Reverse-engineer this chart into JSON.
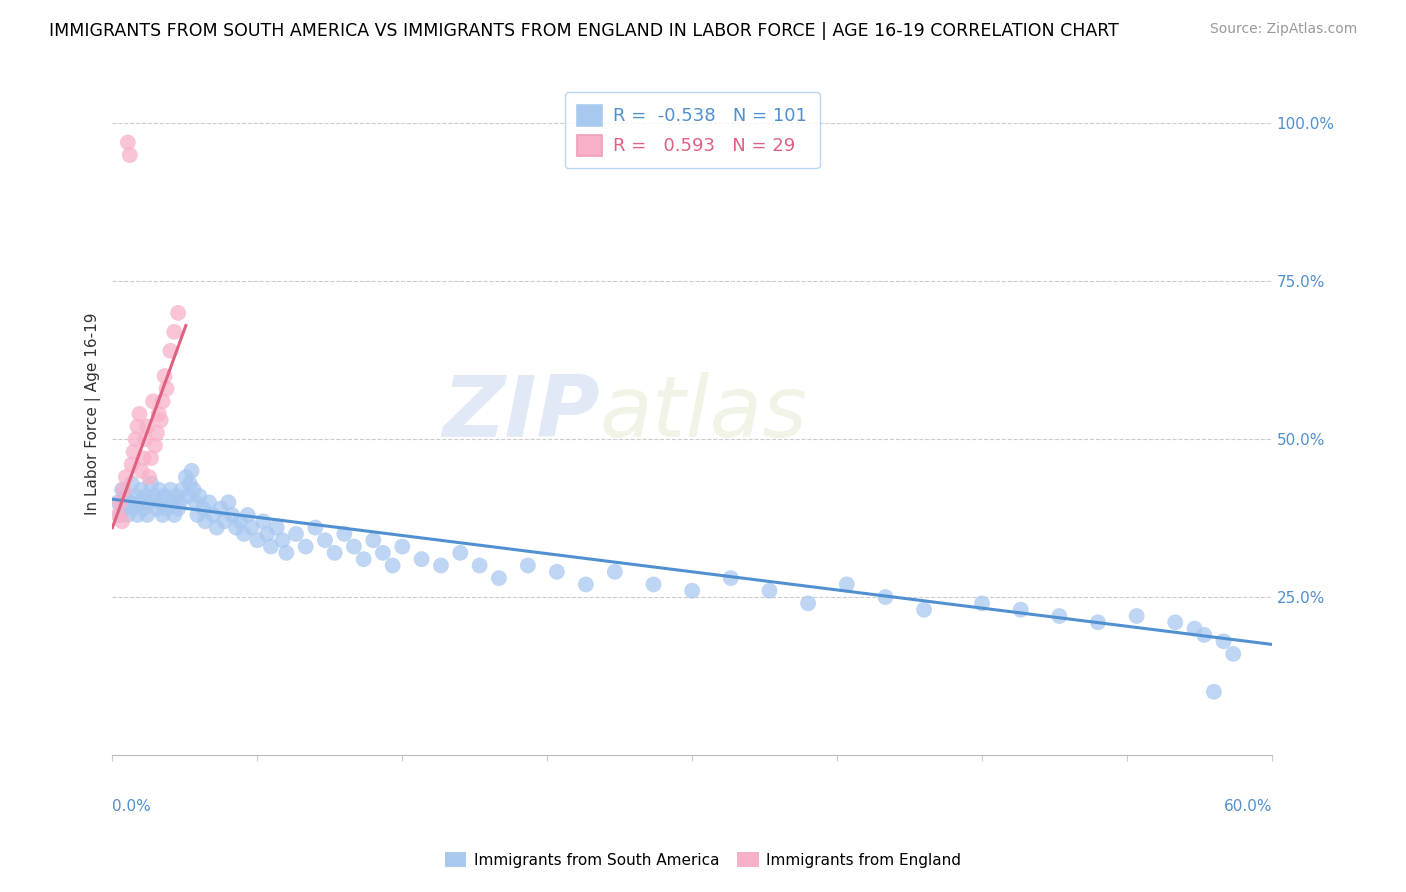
{
  "title": "IMMIGRANTS FROM SOUTH AMERICA VS IMMIGRANTS FROM ENGLAND IN LABOR FORCE | AGE 16-19 CORRELATION CHART",
  "source": "Source: ZipAtlas.com",
  "ylabel": "In Labor Force | Age 16-19",
  "right_yticks": [
    1.0,
    0.75,
    0.5,
    0.25
  ],
  "right_yticklabels": [
    "100.0%",
    "75.0%",
    "50.0%",
    "25.0%"
  ],
  "xlim": [
    0.0,
    0.6
  ],
  "ylim": [
    0.0,
    1.08
  ],
  "blue_color": "#a8c8f0",
  "blue_line_color": "#5090d0",
  "pink_color": "#f8b0c8",
  "pink_line_color": "#e06080",
  "legend_R_blue": "-0.538",
  "legend_N_blue": "101",
  "legend_R_pink": "0.593",
  "legend_N_pink": "29",
  "watermark_zip": "ZIP",
  "watermark_atlas": "atlas",
  "blue_x": [
    0.003,
    0.004,
    0.005,
    0.006,
    0.007,
    0.008,
    0.009,
    0.01,
    0.011,
    0.012,
    0.013,
    0.014,
    0.015,
    0.016,
    0.017,
    0.018,
    0.019,
    0.02,
    0.022,
    0.023,
    0.024,
    0.025,
    0.026,
    0.027,
    0.028,
    0.03,
    0.031,
    0.032,
    0.033,
    0.034,
    0.035,
    0.036,
    0.038,
    0.039,
    0.04,
    0.041,
    0.042,
    0.043,
    0.044,
    0.045,
    0.047,
    0.048,
    0.05,
    0.052,
    0.054,
    0.056,
    0.058,
    0.06,
    0.062,
    0.064,
    0.066,
    0.068,
    0.07,
    0.072,
    0.075,
    0.078,
    0.08,
    0.082,
    0.085,
    0.088,
    0.09,
    0.095,
    0.1,
    0.105,
    0.11,
    0.115,
    0.12,
    0.125,
    0.13,
    0.135,
    0.14,
    0.145,
    0.15,
    0.16,
    0.17,
    0.18,
    0.19,
    0.2,
    0.215,
    0.23,
    0.245,
    0.26,
    0.28,
    0.3,
    0.32,
    0.34,
    0.36,
    0.38,
    0.4,
    0.42,
    0.45,
    0.47,
    0.49,
    0.51,
    0.53,
    0.55,
    0.56,
    0.565,
    0.57,
    0.575,
    0.58
  ],
  "blue_y": [
    0.4,
    0.38,
    0.42,
    0.39,
    0.41,
    0.38,
    0.4,
    0.43,
    0.39,
    0.41,
    0.38,
    0.4,
    0.42,
    0.39,
    0.41,
    0.38,
    0.4,
    0.43,
    0.41,
    0.39,
    0.42,
    0.4,
    0.38,
    0.41,
    0.39,
    0.42,
    0.4,
    0.38,
    0.41,
    0.39,
    0.4,
    0.42,
    0.44,
    0.41,
    0.43,
    0.45,
    0.42,
    0.4,
    0.38,
    0.41,
    0.39,
    0.37,
    0.4,
    0.38,
    0.36,
    0.39,
    0.37,
    0.4,
    0.38,
    0.36,
    0.37,
    0.35,
    0.38,
    0.36,
    0.34,
    0.37,
    0.35,
    0.33,
    0.36,
    0.34,
    0.32,
    0.35,
    0.33,
    0.36,
    0.34,
    0.32,
    0.35,
    0.33,
    0.31,
    0.34,
    0.32,
    0.3,
    0.33,
    0.31,
    0.3,
    0.32,
    0.3,
    0.28,
    0.3,
    0.29,
    0.27,
    0.29,
    0.27,
    0.26,
    0.28,
    0.26,
    0.24,
    0.27,
    0.25,
    0.23,
    0.24,
    0.23,
    0.22,
    0.21,
    0.22,
    0.21,
    0.2,
    0.19,
    0.1,
    0.18,
    0.16
  ],
  "pink_x": [
    0.003,
    0.004,
    0.005,
    0.006,
    0.007,
    0.008,
    0.009,
    0.01,
    0.011,
    0.012,
    0.013,
    0.014,
    0.015,
    0.016,
    0.017,
    0.018,
    0.019,
    0.02,
    0.021,
    0.022,
    0.023,
    0.024,
    0.025,
    0.026,
    0.027,
    0.028,
    0.03,
    0.032,
    0.034
  ],
  "pink_y": [
    0.38,
    0.4,
    0.37,
    0.42,
    0.44,
    0.97,
    0.95,
    0.46,
    0.48,
    0.5,
    0.52,
    0.54,
    0.45,
    0.47,
    0.5,
    0.52,
    0.44,
    0.47,
    0.56,
    0.49,
    0.51,
    0.54,
    0.53,
    0.56,
    0.6,
    0.58,
    0.64,
    0.67,
    0.7
  ],
  "blue_trendline_x": [
    0.0,
    0.6
  ],
  "blue_trendline_y": [
    0.405,
    0.175
  ],
  "pink_trendline_x": [
    0.0,
    0.038
  ],
  "pink_trendline_y": [
    0.36,
    0.68
  ]
}
